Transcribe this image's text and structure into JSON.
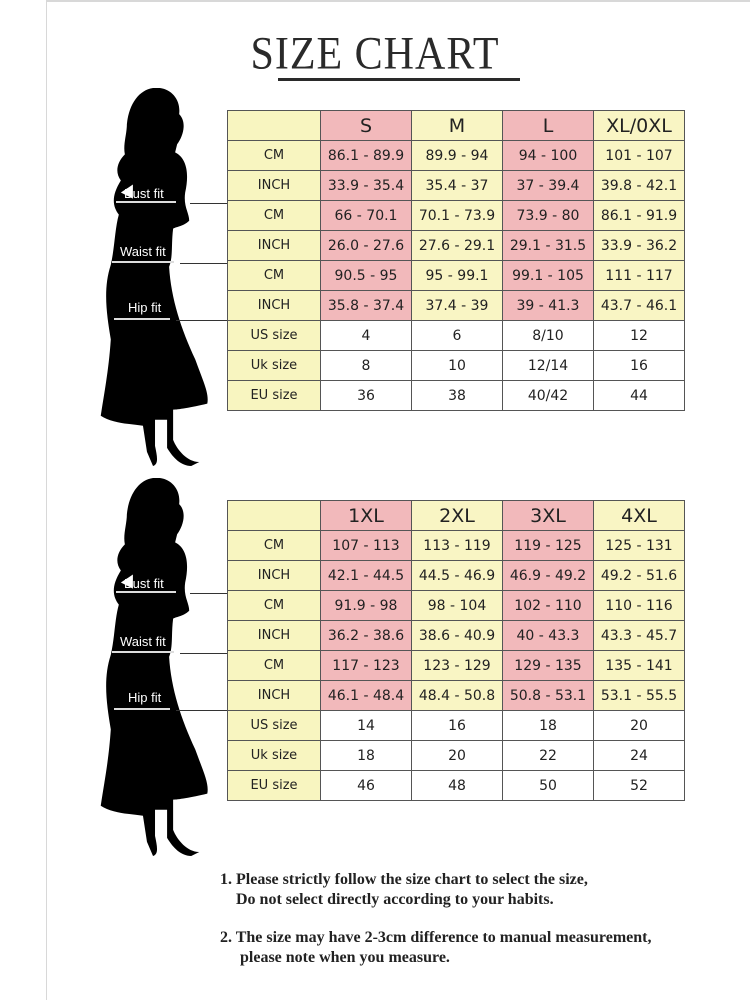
{
  "title": "SIZE CHART",
  "colors": {
    "pink_column": "#f2b9bb",
    "yellow_column": "#f9f5c4",
    "border": "#555555"
  },
  "figure": {
    "icon": "woman-silhouette-icon",
    "labels": [
      "Bust fit",
      "Waist fit",
      "Hip fit"
    ]
  },
  "tables": [
    {
      "sizes": [
        "S",
        "M",
        "L",
        "XL/0XL"
      ],
      "rows": [
        {
          "label": "CM",
          "values": [
            "86.1 - 89.9",
            "89.9 - 94",
            "94 - 100",
            "101 - 107"
          ]
        },
        {
          "label": "INCH",
          "values": [
            "33.9 - 35.4",
            "35.4 - 37",
            "37 - 39.4",
            "39.8 - 42.1"
          ]
        },
        {
          "label": "CM",
          "values": [
            "66 - 70.1",
            "70.1 - 73.9",
            "73.9 - 80",
            "86.1 - 91.9"
          ]
        },
        {
          "label": "INCH",
          "values": [
            "26.0 - 27.6",
            "27.6 - 29.1",
            "29.1 - 31.5",
            "33.9 - 36.2"
          ]
        },
        {
          "label": "CM",
          "values": [
            "90.5 - 95",
            "95 - 99.1",
            "99.1 - 105",
            "111 - 117"
          ]
        },
        {
          "label": "INCH",
          "values": [
            "35.8 - 37.4",
            "37.4 - 39",
            "39 - 41.3",
            "43.7 - 46.1"
          ]
        },
        {
          "label": "US size",
          "values": [
            "4",
            "6",
            "8/10",
            "12"
          ]
        },
        {
          "label": "Uk size",
          "values": [
            "8",
            "10",
            "12/14",
            "16"
          ]
        },
        {
          "label": "EU size",
          "values": [
            "36",
            "38",
            "40/42",
            "44"
          ]
        }
      ]
    },
    {
      "sizes": [
        "1XL",
        "2XL",
        "3XL",
        "4XL"
      ],
      "rows": [
        {
          "label": "CM",
          "values": [
            "107 - 113",
            "113 - 119",
            "119 - 125",
            "125 - 131"
          ]
        },
        {
          "label": "INCH",
          "values": [
            "42.1 - 44.5",
            "44.5 - 46.9",
            "46.9 - 49.2",
            "49.2 - 51.6"
          ]
        },
        {
          "label": "CM",
          "values": [
            "91.9 - 98",
            "98 - 104",
            "102 - 110",
            "110 - 116"
          ]
        },
        {
          "label": "INCH",
          "values": [
            "36.2 - 38.6",
            "38.6 - 40.9",
            "40 - 43.3",
            "43.3 - 45.7"
          ]
        },
        {
          "label": "CM",
          "values": [
            "117 - 123",
            "123 - 129",
            "129 - 135",
            "135 - 141"
          ]
        },
        {
          "label": "INCH",
          "values": [
            "46.1 - 48.4",
            "48.4 - 50.8",
            "50.8 - 53.1",
            "53.1 - 55.5"
          ]
        },
        {
          "label": "US size",
          "values": [
            "14",
            "16",
            "18",
            "20"
          ]
        },
        {
          "label": "Uk size",
          "values": [
            "18",
            "20",
            "22",
            "24"
          ]
        },
        {
          "label": "EU size",
          "values": [
            "46",
            "48",
            "50",
            "52"
          ]
        }
      ]
    }
  ],
  "notes": [
    {
      "line1": "1.  Please strictly follow the size chart to select the size,",
      "line2": "Do not select directly according to your habits."
    },
    {
      "line1": "2.  The size may have 2-3cm difference  to manual measurement,",
      "line2": "please note when you measure."
    }
  ]
}
